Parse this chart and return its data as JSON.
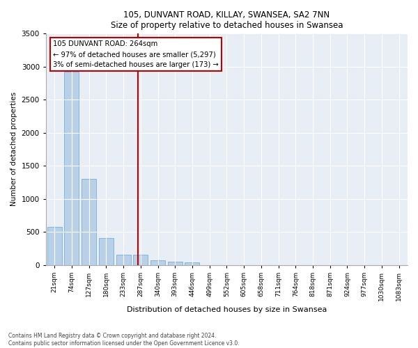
{
  "title": "105, DUNVANT ROAD, KILLAY, SWANSEA, SA2 7NN",
  "subtitle": "Size of property relative to detached houses in Swansea",
  "xlabel": "Distribution of detached houses by size in Swansea",
  "ylabel": "Number of detached properties",
  "categories": [
    "21sqm",
    "74sqm",
    "127sqm",
    "180sqm",
    "233sqm",
    "287sqm",
    "340sqm",
    "393sqm",
    "446sqm",
    "499sqm",
    "552sqm",
    "605sqm",
    "658sqm",
    "711sqm",
    "764sqm",
    "818sqm",
    "871sqm",
    "924sqm",
    "977sqm",
    "1030sqm",
    "1083sqm"
  ],
  "values": [
    570,
    2920,
    1300,
    410,
    155,
    155,
    70,
    45,
    40,
    0,
    0,
    0,
    0,
    0,
    0,
    0,
    0,
    0,
    0,
    0,
    0
  ],
  "bar_color": "#b8d0e8",
  "bar_edge_color": "#7aadd4",
  "marker_line_color": "#c00000",
  "annotation_line1": "105 DUNVANT ROAD: 264sqm",
  "annotation_line2": "← 97% of detached houses are smaller (5,297)",
  "annotation_line3": "3% of semi-detached houses are larger (173) →",
  "annotation_box_color": "#c00000",
  "annotation_bg": "#ffffff",
  "ylim": [
    0,
    3500
  ],
  "yticks": [
    0,
    500,
    1000,
    1500,
    2000,
    2500,
    3000,
    3500
  ],
  "bg_color": "#e8eef5",
  "footnote1": "Contains HM Land Registry data © Crown copyright and database right 2024.",
  "footnote2": "Contains public sector information licensed under the Open Government Licence v3.0."
}
